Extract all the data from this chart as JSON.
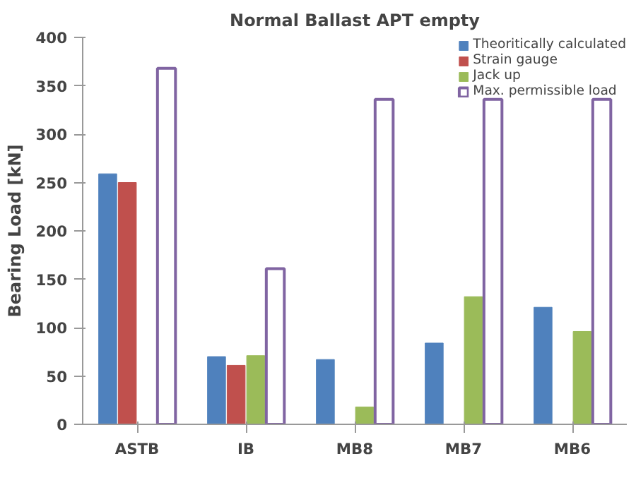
{
  "chart_data": {
    "type": "bar",
    "title": "Normal Ballast APT empty",
    "ylabel": "Bearing Load [kN]",
    "categories": [
      "ASTB",
      "IB",
      "MB8",
      "MB7",
      "MB6"
    ],
    "series": [
      {
        "name": "Theoritically calculated",
        "color": "#4f81bd",
        "values": [
          259,
          70,
          67,
          84,
          121
        ]
      },
      {
        "name": "Strain gauge",
        "color": "#c0504d",
        "values": [
          250,
          61,
          null,
          null,
          null
        ]
      },
      {
        "name": "Jack up",
        "color": "#9bbb59",
        "values": [
          null,
          71,
          18,
          132,
          96
        ]
      },
      {
        "name": "Max. permissible load",
        "color": "#8064a2",
        "values": [
          368,
          161,
          336,
          336,
          336
        ]
      }
    ],
    "ylim": [
      0,
      400
    ],
    "yticks": [
      0,
      50,
      100,
      150,
      200,
      250,
      300,
      350,
      400
    ],
    "grid": false,
    "legend": "top right"
  }
}
